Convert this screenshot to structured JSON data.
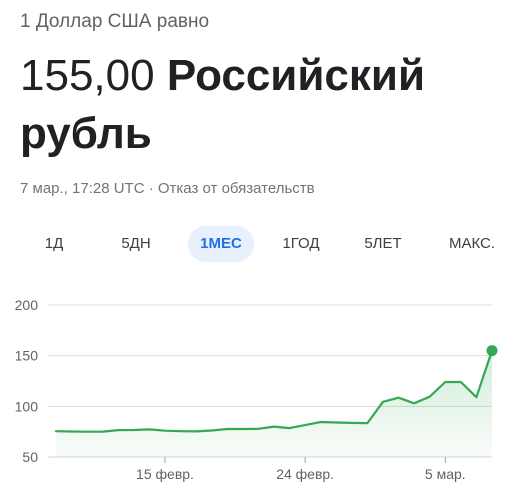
{
  "header": {
    "subtitle": "1 Доллар США равно",
    "rate": "155,00",
    "currency": "Российский рубль",
    "meta": "7 мар., 17:28 UTC · Отказ от обязательств"
  },
  "tabs": [
    {
      "label": "1Д",
      "active": false
    },
    {
      "label": "5ДН",
      "active": false
    },
    {
      "label": "1МЕС",
      "active": true
    },
    {
      "label": "1ГОД",
      "active": false
    },
    {
      "label": "5ЛЕТ",
      "active": false
    },
    {
      "label": "МАКС.",
      "active": false
    }
  ],
  "colors": {
    "line": "#34a853",
    "fill": "#e6f4ea",
    "grid": "#dadce0",
    "accent": "#1a73e8"
  },
  "chart_data": {
    "type": "area",
    "ylim": [
      50,
      200
    ],
    "yticks": [
      50,
      100,
      150,
      200
    ],
    "xtick_labels": [
      "15 февр.",
      "24 февр.",
      "5 мар."
    ],
    "xtick_index": [
      7,
      16,
      25
    ],
    "values": [
      75.5,
      75.2,
      75.0,
      75.1,
      76.5,
      76.6,
      77.2,
      76.0,
      75.5,
      75.3,
      76.2,
      77.6,
      77.6,
      77.8,
      80.0,
      78.5,
      81.5,
      84.5,
      84.0,
      83.7,
      83.5,
      104.5,
      108.5,
      103.0,
      109.5,
      124.0,
      124.0,
      109.0,
      155.0
    ],
    "xlabel": "",
    "ylabel": "",
    "last_point_marker": true
  }
}
